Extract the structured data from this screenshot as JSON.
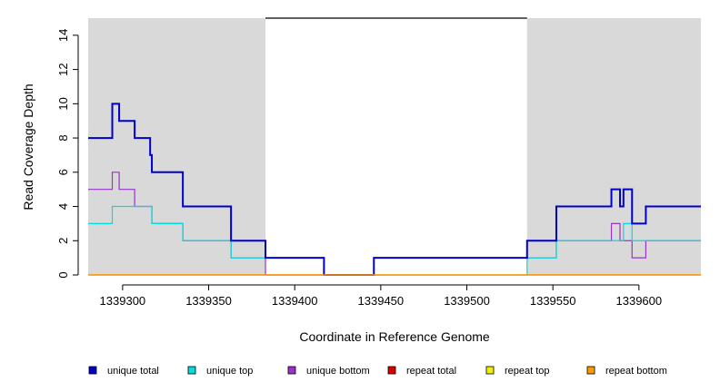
{
  "chart_data": {
    "type": "line",
    "title": "",
    "xlabel": "Coordinate in Reference Genome",
    "ylabel": "Read Coverage Depth",
    "xlim": [
      1339280,
      1339636
    ],
    "ylim": [
      0,
      15
    ],
    "x_ticks": [
      1339300,
      1339350,
      1339400,
      1339450,
      1339500,
      1339550,
      1339600
    ],
    "y_ticks": [
      0,
      2,
      4,
      6,
      8,
      10,
      12,
      14
    ],
    "shaded_regions": [
      {
        "x_start": 1339280,
        "x_end": 1339383,
        "color": "#d9d9d9"
      },
      {
        "x_start": 1339535,
        "x_end": 1339636,
        "color": "#d9d9d9"
      }
    ],
    "reference_line": {
      "x_start": 1339383,
      "x_end": 1339535,
      "y": 15
    },
    "legend_position": "bottom",
    "series": [
      {
        "name": "unique total",
        "color": "#0000cc",
        "step": true,
        "points": [
          [
            1339280,
            8
          ],
          [
            1339294,
            8
          ],
          [
            1339294,
            10
          ],
          [
            1339298,
            10
          ],
          [
            1339298,
            9
          ],
          [
            1339307,
            9
          ],
          [
            1339307,
            8
          ],
          [
            1339316,
            8
          ],
          [
            1339316,
            7
          ],
          [
            1339317,
            7
          ],
          [
            1339317,
            6
          ],
          [
            1339335,
            6
          ],
          [
            1339335,
            4
          ],
          [
            1339363,
            4
          ],
          [
            1339363,
            2
          ],
          [
            1339383,
            2
          ],
          [
            1339383,
            1
          ],
          [
            1339417,
            1
          ],
          [
            1339417,
            0
          ],
          [
            1339446,
            0
          ],
          [
            1339446,
            1
          ],
          [
            1339535,
            1
          ],
          [
            1339535,
            2
          ],
          [
            1339552,
            2
          ],
          [
            1339552,
            4
          ],
          [
            1339584,
            4
          ],
          [
            1339584,
            5
          ],
          [
            1339589,
            5
          ],
          [
            1339589,
            4
          ],
          [
            1339591,
            4
          ],
          [
            1339591,
            5
          ],
          [
            1339596,
            5
          ],
          [
            1339596,
            3
          ],
          [
            1339604,
            3
          ],
          [
            1339604,
            4
          ],
          [
            1339636,
            4
          ]
        ]
      },
      {
        "name": "unique top",
        "color": "#00dddd",
        "step": true,
        "points": [
          [
            1339280,
            3
          ],
          [
            1339294,
            3
          ],
          [
            1339294,
            4
          ],
          [
            1339317,
            4
          ],
          [
            1339317,
            3
          ],
          [
            1339335,
            3
          ],
          [
            1339335,
            2
          ],
          [
            1339363,
            2
          ],
          [
            1339363,
            1
          ],
          [
            1339417,
            1
          ],
          [
            1339417,
            0
          ],
          [
            1339535,
            0
          ],
          [
            1339535,
            1
          ],
          [
            1339552,
            1
          ],
          [
            1339552,
            2
          ],
          [
            1339591,
            2
          ],
          [
            1339591,
            3
          ],
          [
            1339596,
            3
          ],
          [
            1339596,
            2
          ],
          [
            1339636,
            2
          ]
        ]
      },
      {
        "name": "unique bottom",
        "color": "#9933cc",
        "step": true,
        "points": [
          [
            1339280,
            5
          ],
          [
            1339294,
            5
          ],
          [
            1339294,
            6
          ],
          [
            1339298,
            6
          ],
          [
            1339298,
            5
          ],
          [
            1339307,
            5
          ],
          [
            1339307,
            4
          ],
          [
            1339317,
            4
          ],
          [
            1339317,
            3
          ],
          [
            1339335,
            3
          ],
          [
            1339335,
            2
          ],
          [
            1339363,
            2
          ],
          [
            1339363,
            1
          ],
          [
            1339383,
            1
          ],
          [
            1339383,
            0
          ],
          [
            1339446,
            0
          ],
          [
            1339446,
            1
          ],
          [
            1339535,
            1
          ],
          [
            1339535,
            1
          ],
          [
            1339552,
            1
          ],
          [
            1339552,
            2
          ],
          [
            1339584,
            2
          ],
          [
            1339584,
            3
          ],
          [
            1339589,
            3
          ],
          [
            1339589,
            2
          ],
          [
            1339596,
            2
          ],
          [
            1339596,
            1
          ],
          [
            1339604,
            1
          ],
          [
            1339604,
            2
          ],
          [
            1339636,
            2
          ]
        ]
      },
      {
        "name": "repeat total",
        "color": "#dd0000",
        "step": true,
        "points": [
          [
            1339280,
            0
          ],
          [
            1339636,
            0
          ]
        ]
      },
      {
        "name": "repeat top",
        "color": "#eeee00",
        "step": true,
        "points": [
          [
            1339280,
            0
          ],
          [
            1339636,
            0
          ]
        ]
      },
      {
        "name": "repeat bottom",
        "color": "#ff9900",
        "step": true,
        "points": [
          [
            1339280,
            0
          ],
          [
            1339636,
            0
          ]
        ]
      }
    ]
  }
}
